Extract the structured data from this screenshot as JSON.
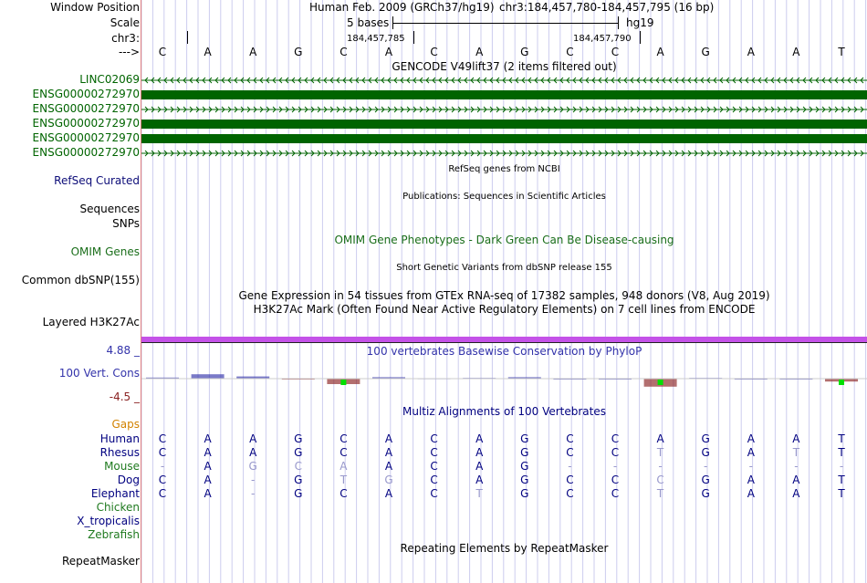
{
  "position": {
    "label": "Window Position",
    "assembly": "Human Feb. 2009 (GRCh37/hg19)",
    "coords": "chr3:184,457,780-184,457,795 (16 bp)"
  },
  "scale": {
    "label": "Scale",
    "span_text": "5 bases",
    "build": "hg19"
  },
  "ruler": {
    "chrom": "chr3:",
    "tick1": "184,457,785",
    "tick2": "184,457,790"
  },
  "strand_label": "--->",
  "bases": [
    "C",
    "A",
    "A",
    "G",
    "C",
    "A",
    "C",
    "A",
    "G",
    "C",
    "C",
    "A",
    "G",
    "A",
    "A",
    "T"
  ],
  "gencode": {
    "title": "GENCODE V49lift37 (2 items filtered out)",
    "color": "#006400",
    "tracks": [
      {
        "label": "LINC02069",
        "style": "line-left"
      },
      {
        "label": "ENSG00000272970",
        "style": "block"
      },
      {
        "label": "ENSG00000272970",
        "style": "line-right"
      },
      {
        "label": "ENSG00000272970",
        "style": "block"
      },
      {
        "label": "ENSG00000272970",
        "style": "block"
      },
      {
        "label": "ENSG00000272970",
        "style": "line-right"
      }
    ]
  },
  "refseq": {
    "label": "RefSeq Curated",
    "title": "RefSeq genes from NCBI"
  },
  "publications": {
    "label": "Sequences",
    "title": "Publications: Sequences in Scientific Articles"
  },
  "snps": {
    "label": "SNPs"
  },
  "omim": {
    "label": "OMIM Genes",
    "title": "OMIM Gene Phenotypes - Dark Green Can Be Disease-causing"
  },
  "dbsnp": {
    "label": "Common dbSNP(155)",
    "title": "Short Genetic Variants from dbSNP release 155"
  },
  "gtex": {
    "title": "Gene Expression in 54 tissues from GTEx RNA-seq of 17382 samples, 948 donors (V8, Aug 2019)"
  },
  "h3k27ac": {
    "label": "Layered H3K27Ac",
    "title": "H3K27Ac Mark (Often Found Near Active Regulatory Elements) on 7 cell lines from ENCODE"
  },
  "phylop": {
    "label": "100 Vert. Cons",
    "max": "4.88 _",
    "min": "-4.5 _",
    "title": "100 vertebrates Basewise Conservation by PhyloP",
    "values": [
      0.3,
      1.2,
      0.6,
      -0.1,
      -1.5,
      0.4,
      0.1,
      0.2,
      0.4,
      0,
      0,
      -2.2,
      0.2,
      0,
      0,
      -0.8
    ]
  },
  "multiz": {
    "title": "Multiz Alignments of 100 Vertebrates",
    "gaps_label": "Gaps",
    "species": [
      {
        "name": "Human",
        "seq": [
          "C",
          "A",
          "A",
          "G",
          "C",
          "A",
          "C",
          "A",
          "G",
          "C",
          "C",
          "A",
          "G",
          "A",
          "A",
          "T"
        ]
      },
      {
        "name": "Rhesus",
        "seq": [
          "C",
          "A",
          "A",
          "G",
          "C",
          "A",
          "C",
          "A",
          "G",
          "C",
          "C",
          "T",
          "G",
          "A",
          "T",
          "T"
        ]
      },
      {
        "name": "Mouse",
        "seq": [
          "-",
          "A",
          "G",
          "C",
          "A",
          "A",
          "C",
          "A",
          "G",
          "-",
          "-",
          "-",
          "-",
          "-",
          "-",
          "-"
        ]
      },
      {
        "name": "Dog",
        "seq": [
          "C",
          "A",
          "-",
          "G",
          "T",
          "G",
          "C",
          "A",
          "G",
          "C",
          "C",
          "C",
          "G",
          "A",
          "A",
          "T"
        ]
      },
      {
        "name": "Elephant",
        "seq": [
          "C",
          "A",
          "-",
          "G",
          "C",
          "A",
          "C",
          "T",
          "G",
          "C",
          "C",
          "T",
          "G",
          "A",
          "A",
          "T"
        ]
      },
      {
        "name": "Chicken",
        "seq": []
      },
      {
        "name": "X_tropicalis",
        "seq": []
      },
      {
        "name": "Zebrafish",
        "seq": []
      }
    ]
  },
  "repeatmasker": {
    "label": "RepeatMasker",
    "title": "Repeating Elements by RepeatMasker"
  },
  "colors": {
    "navy": "#000080",
    "gene_green": "#006400",
    "refseq_blue": "#0c0c78",
    "omim_green": "#1a6e1a",
    "gaps_orange": "#d28200",
    "species_green": "#1f7a1f",
    "phylop_blue": "#3333aa",
    "phylop_red": "#8a2222",
    "h3k27ac_purple": "#c452e8",
    "guide_line": "#ccccee",
    "label_border": "#e08080"
  }
}
